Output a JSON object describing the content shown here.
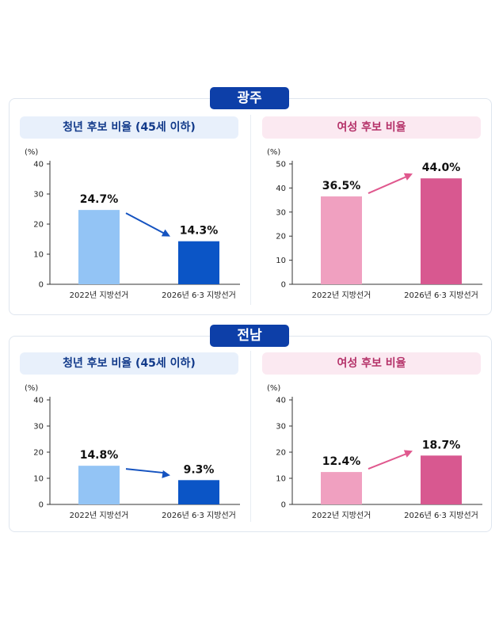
{
  "regions": [
    {
      "name": "광주",
      "charts": [
        {
          "theme": "blue",
          "chart_data": {
            "type": "bar",
            "title": "청년 후보 비율 (45세 이하)",
            "unit_label": "(%)",
            "categories": [
              "2022년 지방선거",
              "2026년 6·3 지방선거"
            ],
            "values": [
              24.7,
              14.3
            ],
            "value_labels": [
              "24.7%",
              "14.3%"
            ],
            "ylim": [
              0,
              40
            ],
            "yticks": [
              0,
              10,
              20,
              30,
              40
            ],
            "colors": [
              "#93c4f5",
              "#0b55c6"
            ],
            "trend": "down",
            "arrow_color": "#1553c0"
          }
        },
        {
          "theme": "pink",
          "chart_data": {
            "type": "bar",
            "title": "여성 후보 비율",
            "unit_label": "(%)",
            "categories": [
              "2022년 지방선거",
              "2026년 6·3 지방선거"
            ],
            "values": [
              36.5,
              44.0
            ],
            "value_labels": [
              "36.5%",
              "44.0%"
            ],
            "ylim": [
              0,
              50
            ],
            "yticks": [
              0,
              10,
              20,
              30,
              40,
              50
            ],
            "colors": [
              "#f0a0c0",
              "#d85890"
            ],
            "trend": "up",
            "arrow_color": "#e0588e"
          }
        }
      ]
    },
    {
      "name": "전남",
      "charts": [
        {
          "theme": "blue",
          "chart_data": {
            "type": "bar",
            "title": "청년 후보 비율 (45세 이하)",
            "unit_label": "(%)",
            "categories": [
              "2022년 지방선거",
              "2026년 6·3 지방선거"
            ],
            "values": [
              14.8,
              9.3
            ],
            "value_labels": [
              "14.8%",
              "9.3%"
            ],
            "ylim": [
              0,
              40
            ],
            "yticks": [
              0,
              10,
              20,
              30,
              40
            ],
            "colors": [
              "#93c4f5",
              "#0b55c6"
            ],
            "trend": "down",
            "arrow_color": "#1553c0"
          }
        },
        {
          "theme": "pink",
          "chart_data": {
            "type": "bar",
            "title": "여성 후보 비율",
            "unit_label": "(%)",
            "categories": [
              "2022년 지방선거",
              "2026년 6·3 지방선거"
            ],
            "values": [
              12.4,
              18.7
            ],
            "value_labels": [
              "12.4%",
              "18.7%"
            ],
            "ylim": [
              0,
              40
            ],
            "yticks": [
              0,
              10,
              20,
              30,
              40
            ],
            "colors": [
              "#f0a0c0",
              "#d85890"
            ],
            "trend": "up",
            "arrow_color": "#e0588e"
          }
        }
      ]
    }
  ]
}
